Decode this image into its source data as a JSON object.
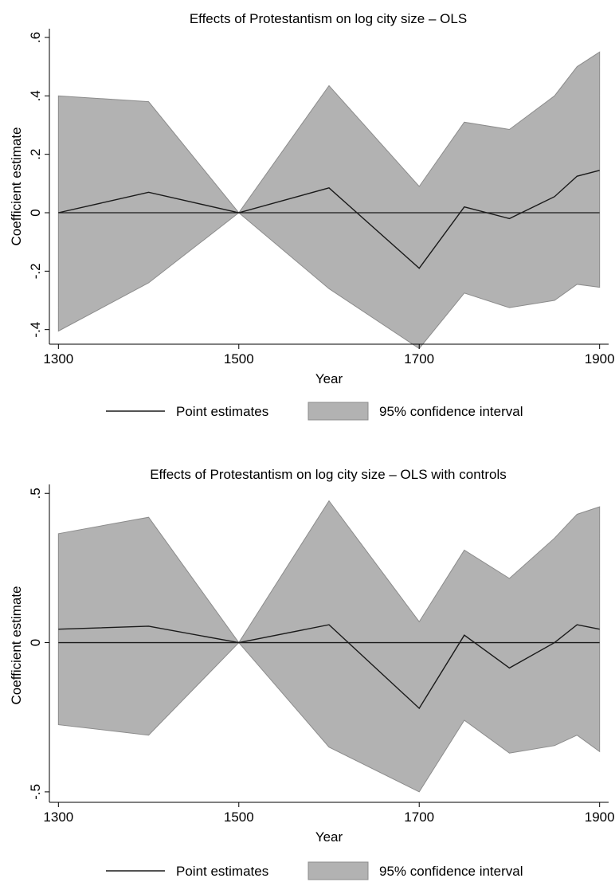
{
  "chart_data": [
    {
      "type": "area",
      "title": "Effects of Protestantism on log city size – OLS",
      "xlabel": "Year",
      "ylabel": "Coefficient estimate",
      "xlim": [
        1290,
        1910
      ],
      "ylim": [
        -0.45,
        0.63
      ],
      "x_ticks": [
        1300,
        1500,
        1700,
        1900
      ],
      "x_tick_labels": [
        "1300",
        "1500",
        "1700",
        "1900"
      ],
      "y_ticks": [
        -0.4,
        -0.2,
        0,
        0.2,
        0.4,
        0.6
      ],
      "y_tick_labels": [
        "-.4",
        "-.2",
        "0",
        ".2",
        ".4",
        ".6"
      ],
      "x": [
        1300,
        1400,
        1500,
        1600,
        1700,
        1750,
        1800,
        1850,
        1875,
        1900
      ],
      "series": [
        {
          "name": "Point estimates",
          "type": "line",
          "values": [
            0.0,
            0.07,
            0.0,
            0.085,
            -0.19,
            0.02,
            -0.02,
            0.055,
            0.125,
            0.145
          ]
        },
        {
          "name": "95% confidence interval",
          "type": "band",
          "lower": [
            -0.405,
            -0.24,
            0.0,
            -0.26,
            -0.465,
            -0.275,
            -0.325,
            -0.3,
            -0.245,
            -0.255
          ],
          "upper": [
            0.4,
            0.38,
            0.0,
            0.435,
            0.09,
            0.31,
            0.285,
            0.4,
            0.5,
            0.55
          ]
        }
      ],
      "reference_line": 0,
      "grid": false,
      "legend": [
        "Point estimates",
        "95% confidence interval"
      ],
      "legend_position": "bottom"
    },
    {
      "type": "area",
      "title": "Effects of Protestantism on log city size – OLS with controls",
      "xlabel": "Year",
      "ylabel": "Coefficient estimate",
      "xlim": [
        1290,
        1910
      ],
      "ylim": [
        -0.535,
        0.53
      ],
      "x_ticks": [
        1300,
        1500,
        1700,
        1900
      ],
      "x_tick_labels": [
        "1300",
        "1500",
        "1700",
        "1900"
      ],
      "y_ticks": [
        -0.5,
        0,
        0.5
      ],
      "y_tick_labels": [
        "-.5",
        "0",
        ".5"
      ],
      "x": [
        1300,
        1400,
        1500,
        1600,
        1700,
        1750,
        1800,
        1850,
        1875,
        1900
      ],
      "series": [
        {
          "name": "Point estimates",
          "type": "line",
          "values": [
            0.045,
            0.055,
            0.0,
            0.06,
            -0.22,
            0.025,
            -0.085,
            0.0,
            0.06,
            0.045
          ]
        },
        {
          "name": "95% confidence interval",
          "type": "band",
          "lower": [
            -0.275,
            -0.31,
            0.0,
            -0.35,
            -0.5,
            -0.26,
            -0.37,
            -0.345,
            -0.31,
            -0.365
          ],
          "upper": [
            0.365,
            0.42,
            0.0,
            0.475,
            0.07,
            0.31,
            0.215,
            0.35,
            0.43,
            0.455
          ]
        }
      ],
      "reference_line": 0,
      "grid": false,
      "legend": [
        "Point estimates",
        "95% confidence interval"
      ],
      "legend_position": "bottom"
    }
  ],
  "colors": {
    "band": "#b2b2b2",
    "band_edge": "#8c8c8c",
    "line": "#1a1a1a",
    "zero_line": "#1a1a1a"
  }
}
